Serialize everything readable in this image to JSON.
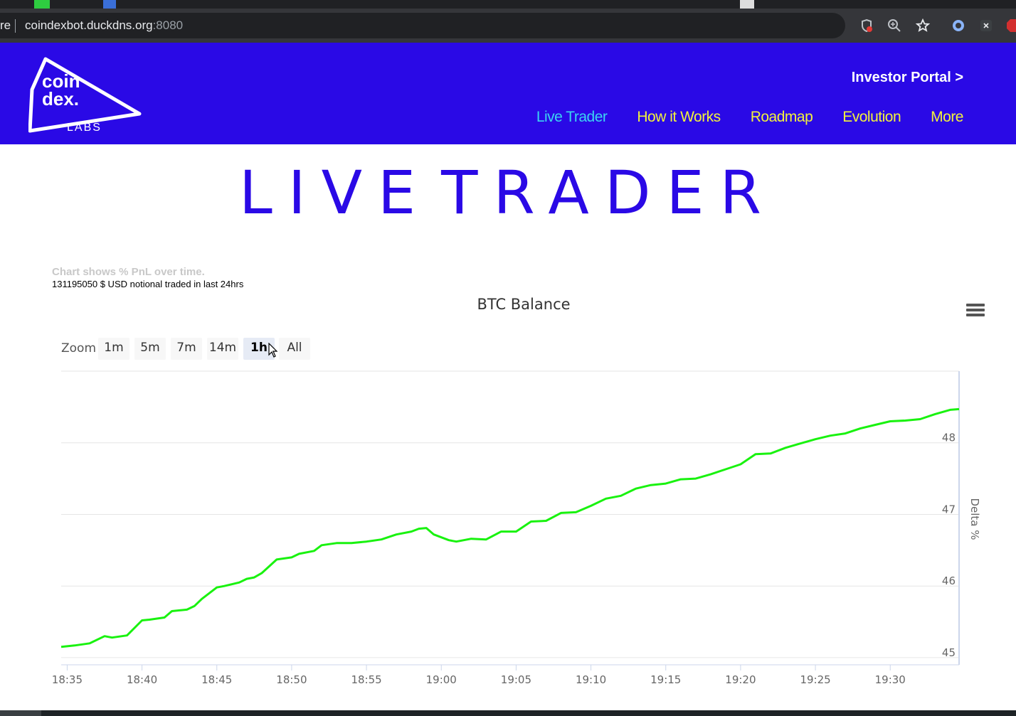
{
  "browser": {
    "omnibox_prefix": "re",
    "url_host": "coindexbot.duckdns.org",
    "url_port": ":8080",
    "icons": [
      "shield-blocked-icon",
      "zoom-icon",
      "star-icon",
      "extension-ring-icon",
      "close-x-icon",
      "adblock-icon"
    ]
  },
  "header": {
    "logo_text_1": "coin",
    "logo_text_2": "dex.",
    "logo_text_3": "LABS",
    "investor_portal": "Investor Portal >",
    "nav": [
      {
        "label": "Live Trader",
        "active": true
      },
      {
        "label": "How it Works",
        "active": false
      },
      {
        "label": "Roadmap",
        "active": false
      },
      {
        "label": "Evolution",
        "active": false
      },
      {
        "label": "More",
        "active": false
      }
    ],
    "brand_color": "#2a09e6",
    "nav_color": "#f2f23c",
    "active_nav_color": "#3bd4f2"
  },
  "main": {
    "title_word1": "LIVE",
    "title_word2": "TRADER",
    "note1": "Chart shows % PnL over time.",
    "note2": "131195050 $ USD notional traded in last 24hrs"
  },
  "zoom": {
    "label": "Zoom",
    "buttons": [
      "1m",
      "5m",
      "7m",
      "14m",
      "1h",
      "All"
    ],
    "selected": "1h"
  },
  "chart_data": {
    "type": "line",
    "title": "BTC Balance",
    "ylabel": "Delta %",
    "xlabel": "",
    "x_ticks": [
      "18:35",
      "18:40",
      "18:45",
      "18:50",
      "18:55",
      "19:00",
      "19:05",
      "19:10",
      "19:15",
      "19:20",
      "19:25",
      "19:30"
    ],
    "y_ticks": [
      45,
      46,
      47,
      48
    ],
    "ylim": [
      44.9,
      49.0
    ],
    "xlim_minutes": [
      34.6,
      94.6
    ],
    "grid": true,
    "line_color": "#19f20f",
    "series": [
      {
        "x": [
          34.6,
          35.5,
          36.5,
          37.5,
          38.0,
          39.0,
          40.0,
          40.5,
          41.5,
          42.0,
          43.0,
          43.5,
          44.0,
          45.0,
          45.5,
          46.5,
          47.0,
          47.5,
          48.0,
          49.0,
          50.0,
          50.5,
          51.5,
          52.0,
          53.0,
          54.0,
          55.0,
          56.0,
          57.0,
          58.0,
          58.5,
          59.0,
          59.5,
          60.5,
          61.0,
          62.0,
          63.0,
          64.0,
          65.0,
          66.0,
          67.0,
          68.0,
          69.0,
          70.0,
          71.0,
          72.0,
          73.0,
          74.0,
          75.0,
          76.0,
          77.0,
          78.0,
          79.0,
          80.0,
          81.0,
          82.0,
          83.0,
          84.0,
          85.0,
          86.0,
          87.0,
          88.0,
          89.0,
          90.0,
          91.0,
          92.0,
          93.0,
          94.0,
          94.6
        ],
        "y": [
          45.15,
          45.17,
          45.2,
          45.3,
          45.28,
          45.31,
          45.52,
          45.53,
          45.56,
          45.65,
          45.67,
          45.72,
          45.82,
          45.98,
          46.0,
          46.05,
          46.1,
          46.12,
          46.18,
          46.37,
          46.4,
          46.45,
          46.49,
          46.57,
          46.6,
          46.6,
          46.62,
          46.65,
          46.72,
          46.76,
          46.8,
          46.81,
          46.72,
          46.64,
          46.62,
          46.66,
          46.65,
          46.76,
          46.76,
          46.9,
          46.91,
          47.02,
          47.03,
          47.12,
          47.22,
          47.26,
          47.36,
          47.41,
          47.43,
          47.49,
          47.5,
          47.56,
          47.63,
          47.7,
          47.84,
          47.85,
          47.93,
          47.99,
          48.05,
          48.1,
          48.13,
          48.2,
          48.25,
          48.3,
          48.31,
          48.33,
          48.4,
          48.46,
          48.47
        ]
      }
    ]
  }
}
